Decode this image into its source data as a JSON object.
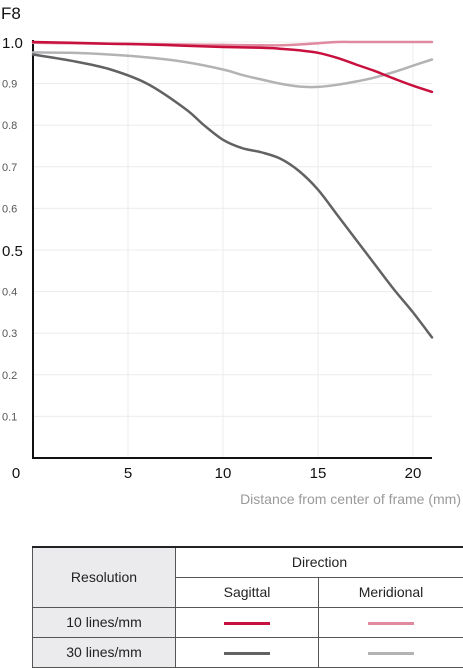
{
  "chart_data": {
    "type": "line",
    "title": "F8",
    "xlabel": "Distance from center of frame (mm)",
    "ylabel": "",
    "xlim": [
      0,
      21
    ],
    "ylim": [
      0,
      1.0
    ],
    "x_ticks": [
      "0",
      "5",
      "10",
      "15",
      "20"
    ],
    "y_ticks": [
      "1.0",
      "0.9",
      "0.8",
      "0.7",
      "0.6",
      "0.5",
      "0.4",
      "0.3",
      "0.2",
      "0.1"
    ],
    "grid": true,
    "series": [
      {
        "name": "10 lines/mm Sagittal",
        "color": "#c8103e",
        "x": [
          0,
          2,
          4,
          6,
          8,
          10,
          12,
          13,
          14,
          15,
          16,
          17,
          18,
          19,
          20,
          21
        ],
        "y": [
          1.0,
          0.998,
          0.996,
          0.994,
          0.991,
          0.988,
          0.986,
          0.984,
          0.98,
          0.974,
          0.962,
          0.946,
          0.93,
          0.912,
          0.895,
          0.88
        ]
      },
      {
        "name": "10 lines/mm Meridional",
        "color": "#e08aa0",
        "x": [
          0,
          2,
          4,
          6,
          8,
          10,
          12,
          13,
          14,
          15,
          16,
          17,
          18,
          19,
          20,
          21
        ],
        "y": [
          0.998,
          0.997,
          0.996,
          0.995,
          0.994,
          0.993,
          0.992,
          0.992,
          0.994,
          0.997,
          1.0,
          1.0,
          1.0,
          1.0,
          1.0,
          1.0
        ]
      },
      {
        "name": "30 lines/mm Sagittal",
        "color": "#626264",
        "x": [
          0,
          2,
          4,
          6,
          8,
          9,
          10,
          11,
          12,
          13,
          14,
          15,
          16,
          17,
          18,
          19,
          20,
          21
        ],
        "y": [
          0.97,
          0.955,
          0.935,
          0.9,
          0.84,
          0.8,
          0.765,
          0.745,
          0.735,
          0.72,
          0.69,
          0.645,
          0.585,
          0.525,
          0.465,
          0.405,
          0.35,
          0.29
        ]
      },
      {
        "name": "30 lines/mm Meridional",
        "color": "#b3b3b5",
        "x": [
          0,
          2,
          4,
          6,
          8,
          10,
          11,
          12,
          13,
          14,
          15,
          16,
          17,
          18,
          19,
          20,
          21
        ],
        "y": [
          0.975,
          0.974,
          0.97,
          0.963,
          0.952,
          0.934,
          0.921,
          0.91,
          0.9,
          0.893,
          0.892,
          0.897,
          0.905,
          0.915,
          0.928,
          0.943,
          0.958
        ]
      }
    ]
  },
  "legend": {
    "resolution_header": "Resolution",
    "direction_header": "Direction",
    "sagittal_header": "Sagittal",
    "meridional_header": "Meridional",
    "rows": [
      {
        "label": "10 lines/mm",
        "sagittal_color": "#c8103e",
        "meridional_color": "#e08aa0"
      },
      {
        "label": "30 lines/mm",
        "sagittal_color": "#626264",
        "meridional_color": "#b3b3b5"
      }
    ]
  }
}
